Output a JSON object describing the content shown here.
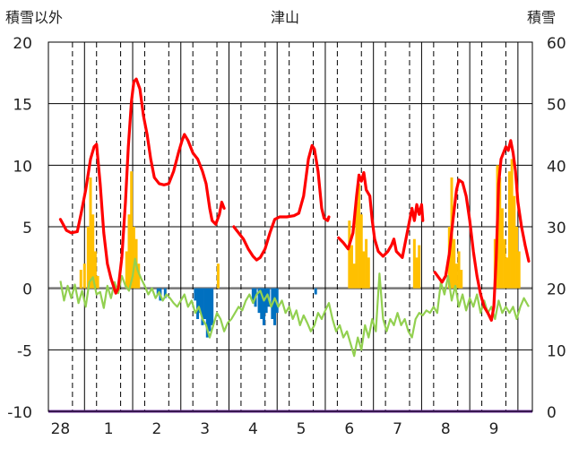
{
  "chart_data": {
    "type": "bar+line",
    "title": "津山",
    "left_axis": {
      "label": "積雪以外",
      "ylim": [
        -10,
        20
      ],
      "ticks": [
        -10,
        -5,
        0,
        5,
        10,
        15,
        20
      ]
    },
    "right_axis": {
      "label": "積雪",
      "ylim": [
        0,
        60
      ],
      "ticks": [
        0,
        10,
        20,
        30,
        40,
        50,
        60
      ]
    },
    "x_day_labels": [
      "28",
      "1",
      "2",
      "3",
      "4",
      "5",
      "6",
      "7",
      "8",
      "9"
    ],
    "grid": true,
    "colors": {
      "temperature": "#ff0000",
      "green_line": "#92d050",
      "precip_positive": "#ffc000",
      "precip_negative": "#0070c0",
      "snow_depth": "#7030a0"
    },
    "series": [
      {
        "axis": "left",
        "color": "#ff0000",
        "points": [
          [
            0.0,
            5.6
          ],
          [
            0.25,
            4.7
          ],
          [
            0.45,
            4.5
          ],
          [
            0.7,
            4.6
          ],
          [
            0.85,
            6.0
          ],
          [
            1.05,
            8.0
          ],
          [
            1.25,
            10.5
          ],
          [
            1.4,
            11.5
          ],
          [
            1.5,
            11.7
          ],
          [
            1.65,
            8.5
          ],
          [
            1.8,
            4.5
          ],
          [
            1.95,
            2.0
          ],
          [
            2.1,
            0.8
          ],
          [
            2.2,
            0.2
          ],
          [
            2.3,
            -0.4
          ],
          [
            2.4,
            0.0
          ],
          [
            2.55,
            2.5
          ],
          [
            2.7,
            7.0
          ],
          [
            2.82,
            11.5
          ],
          [
            2.95,
            15.2
          ],
          [
            3.05,
            16.8
          ],
          [
            3.15,
            17.0
          ],
          [
            3.3,
            16.2
          ],
          [
            3.45,
            14.0
          ],
          [
            3.6,
            12.5
          ],
          [
            3.75,
            10.5
          ],
          [
            3.9,
            9.0
          ],
          [
            4.1,
            8.5
          ],
          [
            4.3,
            8.4
          ],
          [
            4.5,
            8.5
          ],
          [
            4.7,
            9.5
          ],
          [
            4.9,
            11.0
          ],
          [
            5.05,
            12.0
          ],
          [
            5.15,
            12.5
          ],
          [
            5.3,
            12.0
          ],
          [
            5.5,
            11.0
          ],
          [
            5.7,
            10.5
          ],
          [
            5.9,
            9.5
          ],
          [
            6.05,
            8.5
          ],
          [
            6.2,
            6.5
          ],
          [
            6.3,
            5.5
          ],
          [
            6.45,
            5.2
          ],
          [
            6.6,
            6.0
          ],
          [
            6.7,
            7.0
          ],
          [
            6.8,
            6.5
          ]
        ],
        "points_b": [
          [
            7.2,
            5.0
          ],
          [
            7.4,
            4.5
          ],
          [
            7.6,
            4.0
          ],
          [
            7.8,
            3.2
          ],
          [
            8.0,
            2.6
          ],
          [
            8.15,
            2.3
          ],
          [
            8.3,
            2.5
          ],
          [
            8.5,
            3.2
          ],
          [
            8.7,
            4.5
          ],
          [
            8.9,
            5.6
          ],
          [
            9.1,
            5.8
          ],
          [
            9.4,
            5.8
          ],
          [
            9.7,
            5.9
          ],
          [
            9.9,
            6.1
          ],
          [
            10.1,
            7.5
          ],
          [
            10.3,
            10.5
          ],
          [
            10.45,
            11.6
          ],
          [
            10.55,
            11.3
          ],
          [
            10.7,
            9.5
          ],
          [
            10.85,
            6.5
          ],
          [
            10.95,
            5.7
          ],
          [
            11.1,
            5.5
          ],
          [
            11.15,
            5.8
          ]
        ],
        "points_c": [
          [
            11.55,
            4.1
          ],
          [
            11.75,
            3.7
          ],
          [
            11.95,
            3.2
          ],
          [
            12.15,
            4.5
          ],
          [
            12.3,
            7.5
          ],
          [
            12.4,
            9.2
          ],
          [
            12.5,
            8.7
          ],
          [
            12.6,
            9.4
          ],
          [
            12.7,
            8.0
          ],
          [
            12.85,
            7.5
          ],
          [
            12.95,
            5.5
          ],
          [
            13.05,
            4.0
          ],
          [
            13.2,
            3.0
          ],
          [
            13.4,
            2.6
          ],
          [
            13.6,
            3.0
          ],
          [
            13.75,
            3.5
          ],
          [
            13.85,
            4.0
          ],
          [
            13.95,
            3.0
          ],
          [
            14.05,
            2.8
          ],
          [
            14.2,
            2.5
          ],
          [
            14.4,
            4.5
          ],
          [
            14.6,
            6.5
          ],
          [
            14.7,
            5.5
          ],
          [
            14.8,
            6.8
          ],
          [
            14.9,
            6.0
          ],
          [
            15.0,
            6.8
          ],
          [
            15.05,
            5.5
          ]
        ],
        "points_d": [
          [
            15.55,
            1.3
          ],
          [
            15.7,
            0.9
          ],
          [
            15.85,
            0.5
          ],
          [
            16.0,
            1.0
          ],
          [
            16.15,
            2.8
          ],
          [
            16.3,
            5.5
          ],
          [
            16.45,
            8.0
          ],
          [
            16.55,
            8.8
          ],
          [
            16.7,
            8.6
          ],
          [
            16.85,
            7.5
          ],
          [
            17.0,
            5.5
          ],
          [
            17.15,
            3.0
          ],
          [
            17.3,
            1.0
          ],
          [
            17.45,
            -0.5
          ],
          [
            17.6,
            -1.5
          ],
          [
            17.75,
            -2.0
          ],
          [
            17.9,
            -2.6
          ],
          [
            18.0,
            -1.5
          ],
          [
            18.1,
            2.5
          ],
          [
            18.2,
            8.5
          ],
          [
            18.3,
            10.5
          ],
          [
            18.4,
            11.0
          ],
          [
            18.5,
            11.5
          ],
          [
            18.6,
            11.2
          ],
          [
            18.7,
            12.0
          ],
          [
            18.8,
            11.0
          ],
          [
            18.9,
            9.5
          ],
          [
            19.0,
            7.0
          ],
          [
            19.15,
            5.0
          ],
          [
            19.3,
            3.5
          ],
          [
            19.45,
            2.2
          ]
        ]
      },
      {
        "axis": "left",
        "color": "#92d050",
        "points": [
          [
            0.0,
            0.6
          ],
          [
            0.15,
            -1.0
          ],
          [
            0.3,
            0.2
          ],
          [
            0.45,
            -0.8
          ],
          [
            0.6,
            0.3
          ],
          [
            0.75,
            -1.2
          ],
          [
            0.9,
            -0.2
          ],
          [
            1.05,
            -1.5
          ],
          [
            1.2,
            0.5
          ],
          [
            1.35,
            0.9
          ],
          [
            1.5,
            -0.5
          ],
          [
            1.65,
            -0.3
          ],
          [
            1.8,
            -1.6
          ],
          [
            1.95,
            0.2
          ],
          [
            2.1,
            -0.8
          ],
          [
            2.25,
            0.5
          ],
          [
            2.4,
            -0.4
          ],
          [
            2.55,
            1.0
          ],
          [
            2.7,
            0.2
          ],
          [
            2.85,
            -0.2
          ],
          [
            3.0,
            1.0
          ],
          [
            3.1,
            2.4
          ],
          [
            3.2,
            1.5
          ],
          [
            3.35,
            0.8
          ],
          [
            3.5,
            0.2
          ],
          [
            3.65,
            -0.5
          ],
          [
            3.8,
            0.0
          ],
          [
            3.95,
            -0.8
          ],
          [
            4.1,
            -0.3
          ],
          [
            4.25,
            -1.0
          ],
          [
            4.4,
            -0.5
          ],
          [
            4.55,
            -0.8
          ],
          [
            4.7,
            -1.2
          ],
          [
            4.85,
            -1.5
          ],
          [
            5.0,
            -1.0
          ],
          [
            5.15,
            -0.5
          ],
          [
            5.3,
            -1.5
          ],
          [
            5.45,
            -1.0
          ],
          [
            5.6,
            -2.0
          ],
          [
            5.75,
            -1.5
          ],
          [
            5.9,
            -2.5
          ],
          [
            6.05,
            -3.0
          ],
          [
            6.2,
            -4.0
          ],
          [
            6.35,
            -3.0
          ],
          [
            6.5,
            -2.0
          ],
          [
            6.65,
            -2.5
          ],
          [
            6.8,
            -3.5
          ],
          [
            6.95,
            -2.8
          ],
          [
            7.1,
            -2.5
          ],
          [
            7.25,
            -2.0
          ],
          [
            7.4,
            -1.5
          ],
          [
            7.55,
            -1.8
          ],
          [
            7.7,
            -1.0
          ],
          [
            7.85,
            -0.5
          ],
          [
            8.0,
            -1.2
          ],
          [
            8.15,
            -0.5
          ],
          [
            8.3,
            -0.2
          ],
          [
            8.45,
            -1.0
          ],
          [
            8.6,
            -0.5
          ],
          [
            8.75,
            -1.5
          ],
          [
            8.9,
            -0.8
          ],
          [
            9.05,
            -1.5
          ],
          [
            9.2,
            -1.0
          ],
          [
            9.35,
            -2.0
          ],
          [
            9.5,
            -1.5
          ],
          [
            9.65,
            -2.5
          ],
          [
            9.8,
            -1.8
          ],
          [
            9.95,
            -3.0
          ],
          [
            10.1,
            -2.2
          ],
          [
            10.25,
            -2.8
          ],
          [
            10.4,
            -3.5
          ],
          [
            10.55,
            -3.0
          ],
          [
            10.7,
            -2.0
          ],
          [
            10.85,
            -2.5
          ],
          [
            11.0,
            -1.8
          ],
          [
            11.15,
            -1.2
          ],
          [
            11.3,
            -2.5
          ],
          [
            11.45,
            -3.5
          ],
          [
            11.6,
            -3.0
          ],
          [
            11.75,
            -4.0
          ],
          [
            11.9,
            -3.5
          ],
          [
            12.05,
            -4.5
          ],
          [
            12.2,
            -5.5
          ],
          [
            12.35,
            -4.0
          ],
          [
            12.5,
            -5.0
          ],
          [
            12.65,
            -3.0
          ],
          [
            12.8,
            -4.0
          ],
          [
            12.95,
            -2.5
          ],
          [
            13.1,
            -3.5
          ],
          [
            13.25,
            1.2
          ],
          [
            13.4,
            -2.5
          ],
          [
            13.55,
            -3.5
          ],
          [
            13.7,
            -2.5
          ],
          [
            13.85,
            -3.0
          ],
          [
            14.0,
            -2.0
          ],
          [
            14.15,
            -3.0
          ],
          [
            14.3,
            -2.5
          ],
          [
            14.45,
            -3.5
          ],
          [
            14.6,
            -4.0
          ],
          [
            14.75,
            -2.5
          ],
          [
            14.9,
            -2.0
          ],
          [
            15.05,
            -2.2
          ],
          [
            15.2,
            -1.8
          ],
          [
            15.35,
            -2.0
          ],
          [
            15.5,
            -1.5
          ],
          [
            15.65,
            -2.0
          ],
          [
            15.8,
            0.5
          ],
          [
            15.95,
            -0.5
          ],
          [
            16.1,
            1.0
          ],
          [
            16.25,
            -1.0
          ],
          [
            16.4,
            0.2
          ],
          [
            16.55,
            -1.5
          ],
          [
            16.7,
            -0.5
          ],
          [
            16.85,
            -1.8
          ],
          [
            17.0,
            -0.8
          ],
          [
            17.15,
            -1.5
          ],
          [
            17.3,
            -0.5
          ],
          [
            17.45,
            -2.0
          ],
          [
            17.6,
            -1.0
          ],
          [
            17.75,
            -2.0
          ],
          [
            17.9,
            -1.5
          ],
          [
            18.05,
            -2.5
          ],
          [
            18.2,
            -1.0
          ],
          [
            18.35,
            -2.0
          ],
          [
            18.5,
            -1.5
          ],
          [
            18.65,
            -2.0
          ],
          [
            18.8,
            -1.5
          ],
          [
            18.95,
            -2.5
          ],
          [
            19.1,
            -1.5
          ],
          [
            19.25,
            -0.8
          ],
          [
            19.45,
            -1.5
          ]
        ]
      }
    ],
    "precip_bars": {
      "axis": "left",
      "positive": [
        [
          0.85,
          1.5
        ],
        [
          1.0,
          2.0
        ],
        [
          1.15,
          5.0
        ],
        [
          1.25,
          9.0
        ],
        [
          1.35,
          6.0
        ],
        [
          1.45,
          3.0
        ],
        [
          1.55,
          1.0
        ],
        [
          2.75,
          3.0
        ],
        [
          2.85,
          6.0
        ],
        [
          2.95,
          9.5
        ],
        [
          3.05,
          5.0
        ],
        [
          3.15,
          4.0
        ],
        [
          3.25,
          2.0
        ],
        [
          6.55,
          2.0
        ],
        [
          12.0,
          5.5
        ],
        [
          12.1,
          3.5
        ],
        [
          12.2,
          2.0
        ],
        [
          12.3,
          7.0
        ],
        [
          12.4,
          8.5
        ],
        [
          12.5,
          6.0
        ],
        [
          12.6,
          3.0
        ],
        [
          12.7,
          4.0
        ],
        [
          12.8,
          2.5
        ],
        [
          14.7,
          4.0
        ],
        [
          14.8,
          2.5
        ],
        [
          14.9,
          3.5
        ],
        [
          16.15,
          5.0
        ],
        [
          16.25,
          9.0
        ],
        [
          16.35,
          4.0
        ],
        [
          16.45,
          2.0
        ],
        [
          16.55,
          3.0
        ],
        [
          16.65,
          1.5
        ],
        [
          18.05,
          4.0
        ],
        [
          18.15,
          10.0
        ],
        [
          18.25,
          9.0
        ],
        [
          18.35,
          6.5
        ],
        [
          18.45,
          4.0
        ],
        [
          18.55,
          2.5
        ],
        [
          18.65,
          9.5
        ],
        [
          18.75,
          10.5
        ],
        [
          18.85,
          7.5
        ],
        [
          18.95,
          5.0
        ],
        [
          19.05,
          3.0
        ]
      ],
      "negative": [
        [
          4.05,
          -0.5
        ],
        [
          4.15,
          -1.0
        ],
        [
          4.35,
          -0.8
        ],
        [
          5.6,
          -1.0
        ],
        [
          5.7,
          -2.5
        ],
        [
          5.8,
          -2.0
        ],
        [
          5.9,
          -3.0
        ],
        [
          6.0,
          -2.5
        ],
        [
          6.1,
          -4.0
        ],
        [
          6.2,
          -3.5
        ],
        [
          6.3,
          -3.0
        ],
        [
          8.0,
          -1.0
        ],
        [
          8.1,
          -1.5
        ],
        [
          8.25,
          -2.0
        ],
        [
          8.35,
          -2.5
        ],
        [
          8.45,
          -3.0
        ],
        [
          8.55,
          -2.0
        ],
        [
          8.65,
          -1.5
        ],
        [
          8.8,
          -2.5
        ],
        [
          8.9,
          -3.0
        ],
        [
          9.0,
          -2.0
        ],
        [
          10.6,
          -0.5
        ]
      ]
    },
    "snow_depth": {
      "axis": "right",
      "value": 0
    }
  }
}
